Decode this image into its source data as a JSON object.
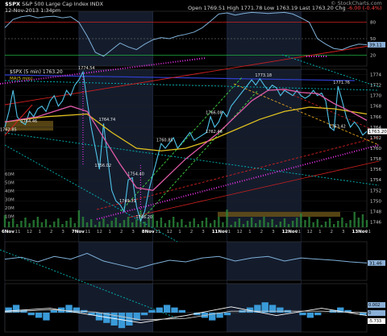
{
  "header": {
    "symbol": "$SPX",
    "name": "S&P 500 Large Cap Index",
    "exchange": "INDX",
    "date": "12-Nov-2013 1:34pm",
    "open_label": "Open",
    "open": "1769.51",
    "high_label": "High",
    "high": "1771.78",
    "low_label": "Low",
    "low": "1763.19",
    "last_label": "Last",
    "last": "1763.20",
    "chg_label": "Chg",
    "chg": "-6.00 (-0.4%)",
    "watermark": "© StockCharts.com"
  },
  "chart_data": [
    {
      "type": "line",
      "panel": "upper-indicator",
      "ylim": [
        0,
        100
      ],
      "tick_labels": [
        "80",
        "50",
        "20"
      ],
      "last_value_label": "39.11",
      "points": [
        [
          0,
          70
        ],
        [
          2,
          85
        ],
        [
          4,
          90
        ],
        [
          6,
          92
        ],
        [
          8,
          88
        ],
        [
          10,
          90
        ],
        [
          12,
          91
        ],
        [
          14,
          88
        ],
        [
          16,
          90
        ],
        [
          18,
          80
        ],
        [
          20,
          55
        ],
        [
          22,
          25
        ],
        [
          24,
          18
        ],
        [
          26,
          30
        ],
        [
          28,
          42
        ],
        [
          30,
          35
        ],
        [
          32,
          30
        ],
        [
          34,
          40
        ],
        [
          36,
          48
        ],
        [
          38,
          52
        ],
        [
          40,
          50
        ],
        [
          42,
          55
        ],
        [
          44,
          58
        ],
        [
          46,
          62
        ],
        [
          48,
          70
        ],
        [
          50,
          82
        ],
        [
          52,
          95
        ],
        [
          54,
          97
        ],
        [
          56,
          93
        ],
        [
          58,
          96
        ],
        [
          60,
          98
        ],
        [
          62,
          97
        ],
        [
          64,
          96
        ],
        [
          66,
          97
        ],
        [
          68,
          98
        ],
        [
          70,
          95
        ],
        [
          72,
          88
        ],
        [
          74,
          80
        ],
        [
          76,
          50
        ],
        [
          78,
          40
        ],
        [
          80,
          32
        ],
        [
          82,
          30
        ],
        [
          84,
          36
        ],
        [
          86,
          40
        ],
        [
          88,
          39
        ]
      ]
    },
    {
      "type": "line",
      "panel": "price",
      "title": "$SPX (5 min) 1763.20",
      "ma_legend": "MA(5 min)",
      "ylim": [
        1745,
        1775
      ],
      "y_ticks": [
        1746,
        1748,
        1750,
        1752,
        1754,
        1756,
        1758,
        1760,
        1762,
        1764,
        1766,
        1768,
        1770,
        1772,
        1774
      ],
      "last_price_label": "1763.20",
      "x_tick_labels": [
        "6Nov",
        "11",
        "12",
        "1",
        "2",
        "3",
        "7Nov",
        "11",
        "12",
        "1",
        "2",
        "3",
        "8Nov",
        "11",
        "12",
        "1",
        "2",
        "3",
        "11Nov",
        "11",
        "12",
        "1",
        "2",
        "3",
        "12Nov",
        "11",
        "12",
        "1",
        "2",
        "3",
        "13Nov",
        "11"
      ],
      "volume_labels": [
        "60M",
        "50M",
        "40M",
        "30M",
        "20M",
        "10M"
      ],
      "annotations": [
        {
          "x": 19,
          "y": 1774.54,
          "label": "1774.54"
        },
        {
          "x": 5,
          "y": 1764.46,
          "label": "1764.46"
        },
        {
          "x": 0,
          "y": 1762.85,
          "label": "1762.85"
        },
        {
          "x": 24,
          "y": 1764.74,
          "label": "1764.74"
        },
        {
          "x": 23,
          "y": 1756.02,
          "label": "1756.02"
        },
        {
          "x": 31,
          "y": 1754.4,
          "label": "1754.40"
        },
        {
          "x": 29,
          "y": 1749.31,
          "label": "1749.31"
        },
        {
          "x": 33,
          "y": 1746.2,
          "label": "1746.20"
        },
        {
          "x": 38,
          "y": 1760.85,
          "label": "1760.85"
        },
        {
          "x": 50,
          "y": 1762.46,
          "label": "1762.46"
        },
        {
          "x": 50,
          "y": 1766.08,
          "label": "1766.08"
        },
        {
          "x": 62,
          "y": 1773.18,
          "label": "1773.18"
        },
        {
          "x": 81,
          "y": 1771.76,
          "label": "1771.76"
        },
        {
          "x": 80,
          "y": 1763.42,
          "label": "1763.42"
        }
      ],
      "series": [
        {
          "kind": "price",
          "color": "#4fc3e8",
          "points": [
            [
              0,
              1764
            ],
            [
              1,
              1767
            ],
            [
              2,
              1771
            ],
            [
              3,
              1766
            ],
            [
              4,
              1765
            ],
            [
              5,
              1764.5
            ],
            [
              6,
              1767
            ],
            [
              7,
              1766
            ],
            [
              8,
              1767.5
            ],
            [
              9,
              1768
            ],
            [
              10,
              1767
            ],
            [
              11,
              1769
            ],
            [
              12,
              1770
            ],
            [
              13,
              1768
            ],
            [
              14,
              1769
            ],
            [
              15,
              1771
            ],
            [
              16,
              1770
            ],
            [
              17,
              1772
            ],
            [
              18,
              1773
            ],
            [
              19,
              1774.5
            ],
            [
              20,
              1769
            ],
            [
              21,
              1764
            ],
            [
              22,
              1760
            ],
            [
              23,
              1756
            ],
            [
              24,
              1764.7
            ],
            [
              25,
              1758
            ],
            [
              26,
              1752
            ],
            [
              27,
              1750
            ],
            [
              28,
              1749.3
            ],
            [
              29,
              1748
            ],
            [
              30,
              1754
            ],
            [
              31,
              1754.4
            ],
            [
              32,
              1749
            ],
            [
              33,
              1746.2
            ],
            [
              34,
              1748
            ],
            [
              35,
              1752
            ],
            [
              36,
              1755
            ],
            [
              37,
              1758
            ],
            [
              38,
              1760.9
            ],
            [
              39,
              1760
            ],
            [
              40,
              1761
            ],
            [
              41,
              1762
            ],
            [
              42,
              1760
            ],
            [
              43,
              1761
            ],
            [
              44,
              1762
            ],
            [
              45,
              1763
            ],
            [
              46,
              1761.5
            ],
            [
              47,
              1762
            ],
            [
              48,
              1762.5
            ],
            [
              49,
              1763
            ],
            [
              50,
              1766
            ],
            [
              51,
              1764
            ],
            [
              52,
              1765
            ],
            [
              53,
              1767
            ],
            [
              54,
              1766
            ],
            [
              55,
              1768
            ],
            [
              56,
              1769
            ],
            [
              57,
              1770
            ],
            [
              58,
              1771
            ],
            [
              59,
              1772
            ],
            [
              60,
              1773
            ],
            [
              61,
              1772
            ],
            [
              62,
              1773.2
            ],
            [
              63,
              1772
            ],
            [
              64,
              1771
            ],
            [
              65,
              1772
            ],
            [
              66,
              1771.5
            ],
            [
              67,
              1770
            ],
            [
              68,
              1771
            ],
            [
              69,
              1770.5
            ],
            [
              70,
              1770
            ],
            [
              71,
              1771
            ],
            [
              72,
              1770
            ],
            [
              73,
              1769.5
            ],
            [
              74,
              1770
            ],
            [
              75,
              1771
            ],
            [
              76,
              1770
            ],
            [
              77,
              1770.5
            ],
            [
              78,
              1769
            ],
            [
              79,
              1764
            ],
            [
              80,
              1763.4
            ],
            [
              81,
              1771.8
            ],
            [
              82,
              1769
            ],
            [
              83,
              1766
            ],
            [
              84,
              1764
            ],
            [
              85,
              1765
            ],
            [
              86,
              1764
            ],
            [
              87,
              1762.5
            ],
            [
              88,
              1763.2
            ]
          ]
        },
        {
          "kind": "ma-slow",
          "color": "#e0c020",
          "points": [
            [
              0,
              1765
            ],
            [
              10,
              1766
            ],
            [
              20,
              1766.5
            ],
            [
              26,
              1763
            ],
            [
              32,
              1760
            ],
            [
              38,
              1759.5
            ],
            [
              44,
              1760
            ],
            [
              50,
              1761.5
            ],
            [
              56,
              1763.5
            ],
            [
              62,
              1765.5
            ],
            [
              68,
              1767
            ],
            [
              74,
              1767.8
            ],
            [
              80,
              1767.5
            ],
            [
              88,
              1766.5
            ]
          ]
        },
        {
          "kind": "ma-fast",
          "color": "#e05aa8",
          "points": [
            [
              0,
              1765
            ],
            [
              8,
              1766
            ],
            [
              16,
              1768
            ],
            [
              20,
              1767
            ],
            [
              24,
              1762
            ],
            [
              28,
              1757
            ],
            [
              32,
              1752.5
            ],
            [
              36,
              1752
            ],
            [
              40,
              1755
            ],
            [
              44,
              1758
            ],
            [
              48,
              1760.5
            ],
            [
              52,
              1763
            ],
            [
              56,
              1766
            ],
            [
              60,
              1769
            ],
            [
              64,
              1771
            ],
            [
              68,
              1771.2
            ],
            [
              72,
              1770.6
            ],
            [
              76,
              1770.4
            ],
            [
              80,
              1768.5
            ],
            [
              84,
              1767
            ],
            [
              88,
              1765.3
            ]
          ]
        }
      ]
    },
    {
      "type": "line",
      "panel": "middle-indicator",
      "last_value_label": "31.46",
      "points": [
        [
          0,
          55
        ],
        [
          4,
          60
        ],
        [
          8,
          48
        ],
        [
          12,
          62
        ],
        [
          16,
          55
        ],
        [
          20,
          70
        ],
        [
          24,
          50
        ],
        [
          28,
          40
        ],
        [
          32,
          30
        ],
        [
          36,
          42
        ],
        [
          40,
          52
        ],
        [
          44,
          48
        ],
        [
          48,
          58
        ],
        [
          52,
          62
        ],
        [
          56,
          50
        ],
        [
          60,
          58
        ],
        [
          64,
          62
        ],
        [
          68,
          50
        ],
        [
          72,
          58
        ],
        [
          76,
          55
        ],
        [
          80,
          52
        ],
        [
          84,
          48
        ],
        [
          88,
          45
        ]
      ]
    },
    {
      "type": "bar",
      "panel": "lower-indicator",
      "tick_labels": [
        "0.002",
        "0",
        "-5.733"
      ],
      "histogram": [
        2,
        3,
        1,
        -1,
        -2,
        -3,
        1,
        2,
        3,
        2,
        1,
        -1,
        -3,
        -4,
        -5,
        -6,
        -5,
        -3,
        -1,
        1,
        2,
        3,
        2,
        1,
        0,
        -1,
        -2,
        -3,
        -2,
        -1,
        0,
        1,
        2,
        3,
        4,
        3,
        2,
        1,
        0,
        -1,
        -2,
        -1,
        0,
        1,
        2,
        1,
        0,
        -1
      ],
      "lines": [
        [
          [
            0,
            0.5
          ],
          [
            6,
            1.5
          ],
          [
            12,
            -1
          ],
          [
            18,
            -3.5
          ],
          [
            24,
            -1
          ],
          [
            30,
            2
          ],
          [
            36,
            -1
          ],
          [
            42,
            1.5
          ],
          [
            48,
            -1
          ]
        ],
        [
          [
            0,
            0.2
          ],
          [
            6,
            1
          ],
          [
            12,
            0.2
          ],
          [
            18,
            -2.5
          ],
          [
            24,
            -2
          ],
          [
            30,
            0.5
          ],
          [
            36,
            0.5
          ],
          [
            42,
            0.5
          ],
          [
            48,
            0
          ]
        ]
      ]
    }
  ]
}
